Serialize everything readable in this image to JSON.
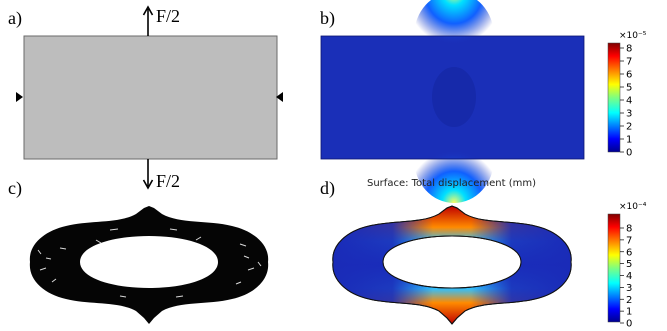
{
  "panels": {
    "a": {
      "label": "a)",
      "force_top": "F/2",
      "force_bottom": "F/2"
    },
    "b": {
      "label": "b)",
      "colorbar_exponent": "×10⁻⁵",
      "ticks": [
        "8",
        "7",
        "6",
        "5",
        "4",
        "3",
        "2",
        "1",
        "0"
      ]
    },
    "c": {
      "label": "c)"
    },
    "d": {
      "label": "d)",
      "title": "Surface: Total displacement (mm)",
      "colorbar_exponent": "×10⁻⁴",
      "ticks": [
        "8",
        "7",
        "6",
        "5",
        "4",
        "3",
        "2",
        "1",
        "0"
      ]
    }
  },
  "colors": {
    "grey_block": "#bdbdbd",
    "field_low": "#0b1aa8",
    "field_high": "#b00000"
  }
}
